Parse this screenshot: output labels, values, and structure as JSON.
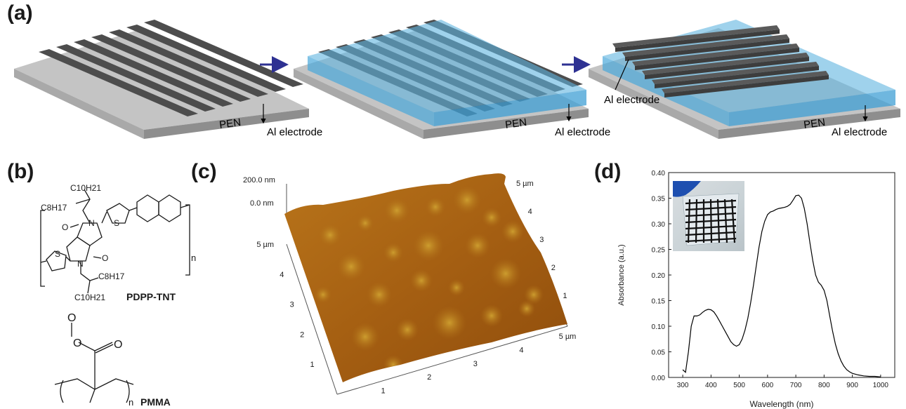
{
  "panels": {
    "a": {
      "label": "(a)",
      "steps": [
        {
          "substrate_label": "PEN",
          "electrode_label": "Al electrode"
        },
        {
          "substrate_label": "PEN",
          "electrode_label": "Al electrode"
        },
        {
          "substrate_label": "PEN",
          "electrode_label": "Al electrode",
          "top_electrode_label": "Al electrode"
        }
      ],
      "colors": {
        "substrate": "#a9a9a9",
        "electrode": "#4d4d4d",
        "film": "#5fb4e0",
        "arrow": "#2e3192"
      }
    },
    "b": {
      "label": "(b)",
      "molecules": [
        {
          "name": "PDPP-TNT",
          "sub_c10": "C10H21",
          "sub_c8": "C8H17",
          "repeat": "n"
        },
        {
          "name": "PMMA",
          "repeat": "n"
        }
      ]
    },
    "c": {
      "label": "(c)",
      "z_top": "200.0 nm",
      "z_bottom": "0.0 nm",
      "left_axis_ticks": [
        "1",
        "2",
        "3",
        "4",
        "5 µm"
      ],
      "bottom_axis_ticks": [
        "1",
        "2",
        "3",
        "4",
        "5 µm"
      ],
      "right_axis_ticks": [
        "1",
        "2",
        "3",
        "4",
        "5 µm"
      ],
      "colors": {
        "surface_light": "#c98a1c",
        "surface_dark": "#8a4a0c"
      }
    },
    "d": {
      "label": "(d)",
      "inset_description_icon": "photo-inset",
      "line_color": "#000000"
    }
  },
  "chart_data": {
    "type": "line",
    "title": "",
    "xlabel": "Wavelength (nm)",
    "ylabel": "Absorbance (a.u.)",
    "xlim": [
      250,
      1050
    ],
    "ylim": [
      0.0,
      0.4
    ],
    "xticks": [
      300,
      400,
      500,
      600,
      700,
      800,
      900,
      1000
    ],
    "yticks": [
      0.0,
      0.05,
      0.1,
      0.15,
      0.2,
      0.25,
      0.3,
      0.35,
      0.4
    ],
    "ytick_labels": [
      "0.00",
      "0.05",
      "0.10",
      "0.15",
      "0.20",
      "0.25",
      "0.30",
      "0.35",
      "0.40"
    ],
    "grid": false,
    "series": [
      {
        "x": [
          300,
          310,
          320,
          330,
          340,
          350,
          360,
          370,
          380,
          390,
          400,
          410,
          420,
          430,
          440,
          450,
          460,
          470,
          480,
          490,
          500,
          510,
          520,
          530,
          540,
          550,
          560,
          570,
          580,
          590,
          600,
          610,
          620,
          630,
          640,
          650,
          660,
          670,
          680,
          690,
          700,
          710,
          720,
          730,
          740,
          750,
          760,
          770,
          780,
          790,
          800,
          810,
          820,
          830,
          840,
          850,
          860,
          870,
          880,
          890,
          900,
          920,
          940,
          960,
          980,
          1000
        ],
        "y": [
          0.015,
          0.01,
          0.05,
          0.1,
          0.12,
          0.12,
          0.122,
          0.127,
          0.131,
          0.133,
          0.132,
          0.128,
          0.12,
          0.11,
          0.1,
          0.09,
          0.08,
          0.07,
          0.064,
          0.061,
          0.064,
          0.075,
          0.092,
          0.115,
          0.145,
          0.18,
          0.218,
          0.255,
          0.285,
          0.305,
          0.318,
          0.323,
          0.325,
          0.328,
          0.33,
          0.331,
          0.332,
          0.334,
          0.338,
          0.346,
          0.355,
          0.356,
          0.35,
          0.33,
          0.3,
          0.262,
          0.228,
          0.2,
          0.186,
          0.18,
          0.17,
          0.15,
          0.12,
          0.09,
          0.065,
          0.046,
          0.032,
          0.022,
          0.015,
          0.011,
          0.008,
          0.005,
          0.003,
          0.002,
          0.002,
          0.001
        ]
      }
    ]
  }
}
